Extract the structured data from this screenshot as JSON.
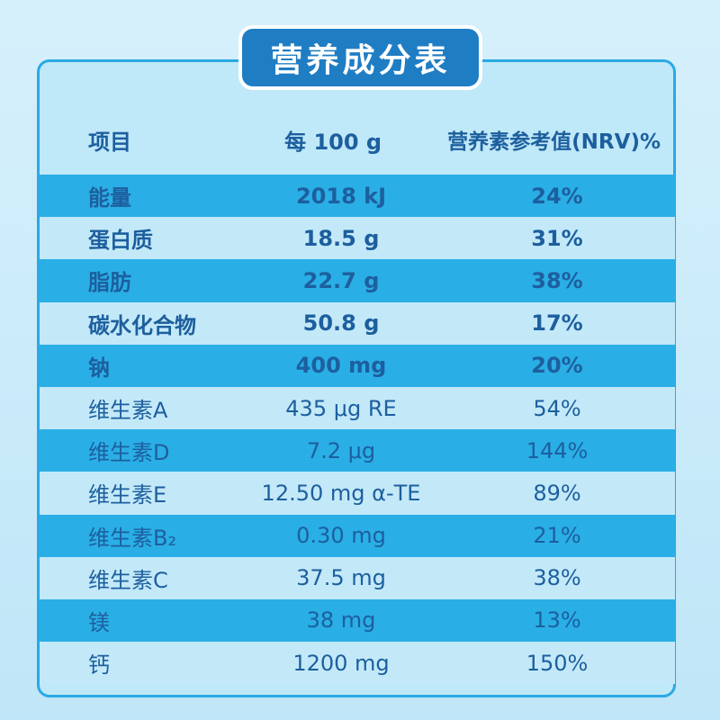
{
  "title": "营养成分表",
  "header": {
    "item": "项目",
    "per100g": "每 100 g",
    "nrv": "营养素参考值(NRV)%"
  },
  "rows": [
    {
      "name": "能量",
      "amount": "2018 kJ",
      "nrv": "24%"
    },
    {
      "name": "蛋白质",
      "amount": "18.5 g",
      "nrv": "31%"
    },
    {
      "name": "脂肪",
      "amount": "22.7 g",
      "nrv": "38%"
    },
    {
      "name": "碳水化合物",
      "amount": "50.8 g",
      "nrv": "17%"
    },
    {
      "name": "钠",
      "amount": "400 mg",
      "nrv": "20%"
    },
    {
      "name": "维生素A",
      "amount": "435 μg RE",
      "nrv": "54%"
    },
    {
      "name": "维生素D",
      "amount": "7.2 μg",
      "nrv": "144%"
    },
    {
      "name": "维生素E",
      "amount": "12.50 mg α-TE",
      "nrv": "89%"
    },
    {
      "name": "维生素B₂",
      "amount": "0.30 mg",
      "nrv": "21%"
    },
    {
      "name": "维生素C",
      "amount": "37.5 mg",
      "nrv": "38%"
    },
    {
      "name": "镁",
      "amount": "38 mg",
      "nrv": "13%"
    },
    {
      "name": "钙",
      "amount": "1200 mg",
      "nrv": "150%"
    }
  ],
  "colors": {
    "title_bg": "#1f7dc4",
    "row_dark": "#2aaee6",
    "row_light": "#c3e9f9",
    "text": "#1d5f9e",
    "border": "#2aa9e4"
  }
}
